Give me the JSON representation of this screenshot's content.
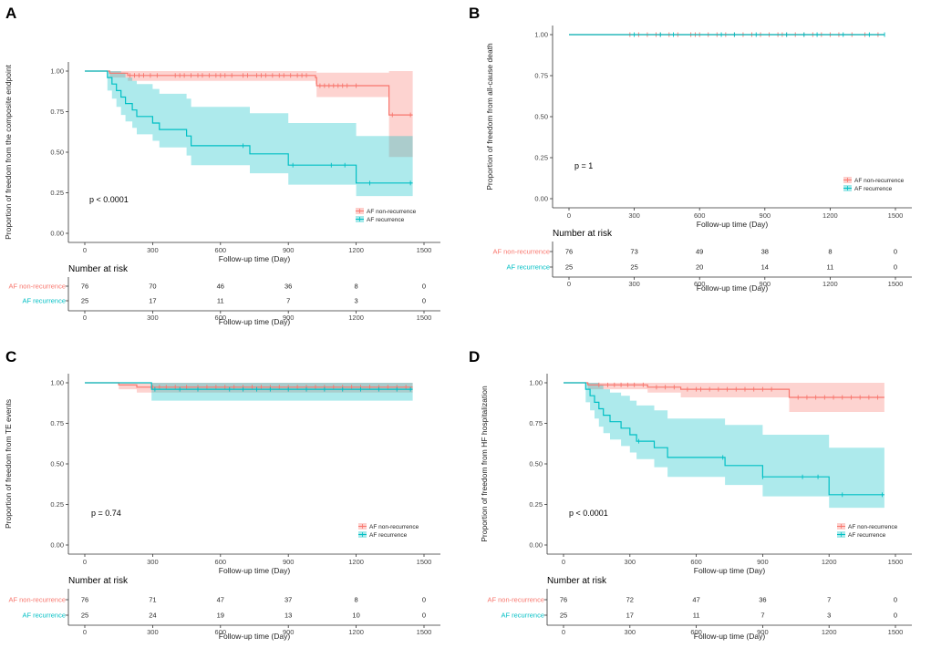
{
  "colors": {
    "nonrec": "#F8766D",
    "rec": "#00BFC4",
    "nonrec_band": "#F8766D",
    "rec_band": "#00BFC4",
    "axis": "#333333"
  },
  "chart_data": [
    {
      "type": "line",
      "panel_label": "A",
      "title": "",
      "ylabel": "Proportion of freedom from the composite endpoint",
      "xlabel": "Follow-up time (Day)",
      "xlim": [
        0,
        1500
      ],
      "ylim": [
        0,
        1
      ],
      "x_ticks": [
        0,
        300,
        600,
        900,
        1200,
        1500
      ],
      "y_ticks": [
        0.0,
        0.25,
        0.5,
        0.75,
        1.0
      ],
      "y_tick_labels": [
        "0.00",
        "0.25",
        "0.50",
        "0.75",
        "1.00"
      ],
      "pvalue": "p < 0.0001",
      "legend": [
        "AF non-recurrence",
        "AF recurrence"
      ],
      "legend_position": "bottom-right",
      "series": [
        {
          "name": "AF non-recurrence",
          "steps": [
            [
              0,
              1.0
            ],
            [
              110,
              0.987
            ],
            [
              190,
              0.973
            ],
            [
              1020,
              0.96
            ],
            [
              1025,
              0.91
            ],
            [
              1340,
              0.91
            ],
            [
              1345,
              0.73
            ],
            [
              1450,
              0.73
            ]
          ],
          "band": [
            [
              0,
              1.0,
              1.0
            ],
            [
              110,
              1.0,
              0.96
            ],
            [
              190,
              1.0,
              0.94
            ],
            [
              1020,
              1.0,
              0.92
            ],
            [
              1025,
              0.99,
              0.84
            ],
            [
              1340,
              0.99,
              0.84
            ],
            [
              1345,
              1.0,
              0.47
            ],
            [
              1450,
              1.0,
              0.47
            ]
          ],
          "censor": [
            200,
            220,
            240,
            260,
            290,
            320,
            400,
            420,
            440,
            470,
            500,
            520,
            550,
            580,
            600,
            620,
            650,
            700,
            720,
            760,
            780,
            800,
            830,
            860,
            880,
            910,
            940,
            960,
            980,
            1040,
            1060,
            1080,
            1100,
            1120,
            1140,
            1160,
            1200,
            1360,
            1440
          ]
        },
        {
          "name": "AF recurrence",
          "steps": [
            [
              0,
              1.0
            ],
            [
              100,
              0.96
            ],
            [
              120,
              0.92
            ],
            [
              140,
              0.88
            ],
            [
              160,
              0.84
            ],
            [
              180,
              0.8
            ],
            [
              210,
              0.76
            ],
            [
              230,
              0.72
            ],
            [
              300,
              0.68
            ],
            [
              330,
              0.64
            ],
            [
              450,
              0.6
            ],
            [
              470,
              0.54
            ],
            [
              730,
              0.49
            ],
            [
              900,
              0.42
            ],
            [
              1200,
              0.31
            ],
            [
              1450,
              0.31
            ]
          ],
          "band": [
            [
              0,
              1.0,
              1.0
            ],
            [
              100,
              1.0,
              0.88
            ],
            [
              120,
              1.0,
              0.83
            ],
            [
              140,
              1.0,
              0.78
            ],
            [
              160,
              0.99,
              0.73
            ],
            [
              180,
              0.96,
              0.69
            ],
            [
              210,
              0.94,
              0.65
            ],
            [
              230,
              0.92,
              0.61
            ],
            [
              300,
              0.89,
              0.57
            ],
            [
              330,
              0.86,
              0.53
            ],
            [
              450,
              0.83,
              0.48
            ],
            [
              470,
              0.78,
              0.42
            ],
            [
              730,
              0.74,
              0.37
            ],
            [
              900,
              0.68,
              0.3
            ],
            [
              1200,
              0.6,
              0.23
            ],
            [
              1450,
              0.6,
              0.23
            ]
          ],
          "censor": [
            700,
            920,
            1090,
            1150,
            1260,
            1440
          ]
        }
      ],
      "risk_table": {
        "heading": "Number at risk",
        "rows": [
          {
            "label": "AF non-recurrence",
            "values": [
              "76",
              "70",
              "46",
              "36",
              "8",
              "0"
            ]
          },
          {
            "label": "AF recurrence",
            "values": [
              "25",
              "17",
              "11",
              "7",
              "3",
              "0"
            ]
          }
        ],
        "xlabel": "Follow-up time (Day)"
      }
    },
    {
      "type": "line",
      "panel_label": "B",
      "title": "",
      "ylabel": "Proportion of freedom from all-cause death",
      "xlabel": "Follow-up time (Day)",
      "xlim": [
        0,
        1500
      ],
      "ylim": [
        0,
        1
      ],
      "x_ticks": [
        0,
        300,
        600,
        900,
        1200,
        1500
      ],
      "y_ticks": [
        0.0,
        0.25,
        0.5,
        0.75,
        1.0
      ],
      "y_tick_labels": [
        "0.00",
        "0.25",
        "0.50",
        "0.75",
        "1.00"
      ],
      "pvalue": "p = 1",
      "legend": [
        "AF non-recurrence",
        "AF recurrence"
      ],
      "legend_position": "bottom-right",
      "series": [
        {
          "name": "AF non-recurrence",
          "steps": [
            [
              0,
              1.0
            ],
            [
              1450,
              1.0
            ]
          ],
          "band": [],
          "censor": [
            280,
            320,
            360,
            400,
            420,
            460,
            500,
            560,
            580,
            600,
            640,
            680,
            720,
            760,
            800,
            840,
            880,
            920,
            960,
            980,
            1000,
            1040,
            1080,
            1120,
            1160,
            1200,
            1240,
            1300,
            1360,
            1420
          ]
        },
        {
          "name": "AF recurrence",
          "steps": [
            [
              0,
              1.0
            ],
            [
              1450,
              1.0
            ]
          ],
          "band": [],
          "censor": [
            300,
            420,
            480,
            700,
            760,
            860,
            1000,
            1080,
            1140,
            1260,
            1380,
            1450
          ]
        }
      ],
      "risk_table": {
        "heading": "Number at risk",
        "rows": [
          {
            "label": "AF non-recurrence",
            "values": [
              "76",
              "73",
              "49",
              "38",
              "8",
              "0"
            ]
          },
          {
            "label": "AF recurrence",
            "values": [
              "25",
              "25",
              "20",
              "14",
              "11",
              "0"
            ]
          }
        ],
        "xlabel": "Follow-up time (Day)"
      }
    },
    {
      "type": "line",
      "panel_label": "C",
      "title": "",
      "ylabel": "Proportion of freedom from TE events",
      "xlabel": "Follow-up time (Day)",
      "xlim": [
        0,
        1500
      ],
      "ylim": [
        0,
        1
      ],
      "x_ticks": [
        0,
        300,
        600,
        900,
        1200,
        1500
      ],
      "y_ticks": [
        0.0,
        0.25,
        0.5,
        0.75,
        1.0
      ],
      "y_tick_labels": [
        "0.00",
        "0.25",
        "0.50",
        "0.75",
        "1.00"
      ],
      "pvalue": "p = 0.74",
      "legend": [
        "AF non-recurrence",
        "AF recurrence"
      ],
      "legend_position": "bottom-right",
      "series": [
        {
          "name": "AF non-recurrence",
          "steps": [
            [
              0,
              1.0
            ],
            [
              150,
              0.987
            ],
            [
              230,
              0.973
            ],
            [
              1450,
              0.973
            ]
          ],
          "band": [
            [
              0,
              1.0,
              1.0
            ],
            [
              150,
              1.0,
              0.96
            ],
            [
              230,
              1.0,
              0.94
            ],
            [
              1450,
              1.0,
              0.94
            ]
          ],
          "censor": [
            300,
            330,
            360,
            400,
            450,
            500,
            540,
            580,
            620,
            660,
            700,
            740,
            780,
            820,
            860,
            900,
            940,
            980,
            1020,
            1060,
            1100,
            1140,
            1180,
            1220,
            1260,
            1300,
            1340,
            1380,
            1420
          ]
        },
        {
          "name": "AF recurrence",
          "steps": [
            [
              0,
              1.0
            ],
            [
              290,
              1.0
            ],
            [
              295,
              0.96
            ],
            [
              1450,
              0.96
            ]
          ],
          "band": [
            [
              0,
              1.0,
              1.0
            ],
            [
              290,
              1.0,
              1.0
            ],
            [
              295,
              1.0,
              0.89
            ],
            [
              1450,
              1.0,
              0.89
            ]
          ],
          "censor": [
            310,
            420,
            500,
            640,
            700,
            760,
            820,
            900,
            980,
            1060,
            1140,
            1220,
            1300,
            1380,
            1440
          ]
        }
      ],
      "risk_table": {
        "heading": "Number at risk",
        "rows": [
          {
            "label": "AF non-recurrence",
            "values": [
              "76",
              "71",
              "47",
              "37",
              "8",
              "0"
            ]
          },
          {
            "label": "AF recurrence",
            "values": [
              "25",
              "24",
              "19",
              "13",
              "10",
              "0"
            ]
          }
        ],
        "xlabel": "Follow-up time (Day)"
      }
    },
    {
      "type": "line",
      "panel_label": "D",
      "title": "",
      "ylabel": "Proportion of freedom from HF hospitalization",
      "xlabel": "Follow-up time (Day)",
      "xlim": [
        0,
        1500
      ],
      "ylim": [
        0,
        1
      ],
      "x_ticks": [
        0,
        300,
        600,
        900,
        1200,
        1500
      ],
      "y_ticks": [
        0.0,
        0.25,
        0.5,
        0.75,
        1.0
      ],
      "y_tick_labels": [
        "0.00",
        "0.25",
        "0.50",
        "0.75",
        "1.00"
      ],
      "pvalue": "p < 0.0001",
      "legend": [
        "AF non-recurrence",
        "AF recurrence"
      ],
      "legend_position": "bottom-right",
      "series": [
        {
          "name": "AF non-recurrence",
          "steps": [
            [
              0,
              1.0
            ],
            [
              110,
              0.987
            ],
            [
              380,
              0.973
            ],
            [
              530,
              0.96
            ],
            [
              1020,
              0.91
            ],
            [
              1450,
              0.91
            ]
          ],
          "band": [
            [
              0,
              1.0,
              1.0
            ],
            [
              110,
              1.0,
              0.96
            ],
            [
              380,
              1.0,
              0.94
            ],
            [
              530,
              1.0,
              0.91
            ],
            [
              1020,
              1.0,
              0.82
            ],
            [
              1450,
              1.0,
              0.82
            ]
          ],
          "censor": [
            160,
            200,
            230,
            260,
            290,
            320,
            360,
            420,
            460,
            500,
            560,
            600,
            620,
            660,
            700,
            740,
            780,
            820,
            860,
            900,
            940,
            1060,
            1100,
            1140,
            1180,
            1220,
            1260,
            1300,
            1340,
            1380,
            1420
          ]
        },
        {
          "name": "AF recurrence",
          "steps": [
            [
              0,
              1.0
            ],
            [
              100,
              0.96
            ],
            [
              120,
              0.92
            ],
            [
              140,
              0.88
            ],
            [
              160,
              0.84
            ],
            [
              180,
              0.8
            ],
            [
              210,
              0.76
            ],
            [
              260,
              0.72
            ],
            [
              300,
              0.68
            ],
            [
              330,
              0.64
            ],
            [
              410,
              0.6
            ],
            [
              470,
              0.54
            ],
            [
              730,
              0.49
            ],
            [
              900,
              0.42
            ],
            [
              1200,
              0.31
            ],
            [
              1450,
              0.31
            ]
          ],
          "band": [
            [
              0,
              1.0,
              1.0
            ],
            [
              100,
              1.0,
              0.88
            ],
            [
              120,
              1.0,
              0.83
            ],
            [
              140,
              1.0,
              0.78
            ],
            [
              160,
              0.99,
              0.73
            ],
            [
              180,
              0.96,
              0.69
            ],
            [
              210,
              0.94,
              0.65
            ],
            [
              260,
              0.92,
              0.61
            ],
            [
              300,
              0.89,
              0.57
            ],
            [
              330,
              0.86,
              0.53
            ],
            [
              410,
              0.83,
              0.48
            ],
            [
              470,
              0.78,
              0.42
            ],
            [
              730,
              0.74,
              0.37
            ],
            [
              900,
              0.68,
              0.3
            ],
            [
              1200,
              0.6,
              0.23
            ],
            [
              1450,
              0.6,
              0.23
            ]
          ],
          "censor": [
            340,
            720,
            900,
            1080,
            1150,
            1260,
            1440
          ]
        }
      ],
      "risk_table": {
        "heading": "Number at risk",
        "rows": [
          {
            "label": "AF non-recurrence",
            "values": [
              "76",
              "72",
              "47",
              "36",
              "7",
              "0"
            ]
          },
          {
            "label": "AF recurrence",
            "values": [
              "25",
              "17",
              "11",
              "7",
              "3",
              "0"
            ]
          }
        ],
        "xlabel": "Follow-up time (Day)"
      }
    }
  ]
}
